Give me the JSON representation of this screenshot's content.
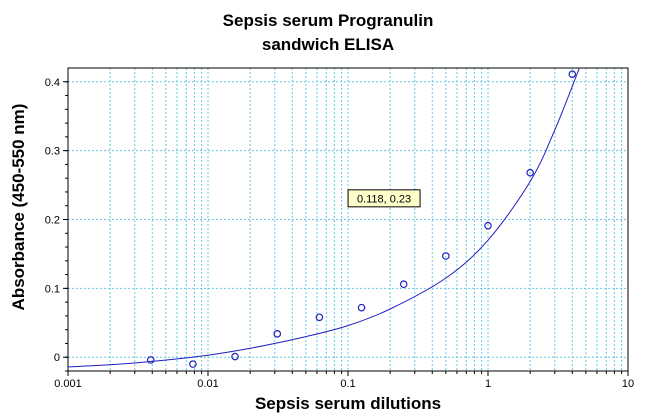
{
  "chart_data": {
    "type": "scatter",
    "title_lines": [
      "Sepsis serum Progranulin",
      "sandwich ELISA"
    ],
    "xlabel": "Sepsis serum dilutions",
    "ylabel": "Absorbance (450-550 nm)",
    "x_scale": "log",
    "xlim": [
      0.001,
      10
    ],
    "ylim": [
      -0.02,
      0.42
    ],
    "x_ticks": [
      0.001,
      0.01,
      0.1,
      1,
      10
    ],
    "x_tick_labels": [
      "0.001",
      "0.01",
      "0.1",
      "1",
      "10"
    ],
    "y_ticks": [
      0,
      0.1,
      0.2,
      0.3,
      0.4
    ],
    "y_tick_labels": [
      "0",
      "0.1",
      "0.2",
      "0.3",
      "0.4"
    ],
    "grid": true,
    "colors": {
      "points": "#1f1fbf",
      "curve": "#1f1fbf",
      "grid": "#66c8e6",
      "annotation_bg": "#ffffcc"
    },
    "points": [
      {
        "x": 0.0039,
        "y": -0.004
      },
      {
        "x": 0.0078,
        "y": -0.01
      },
      {
        "x": 0.0156,
        "y": 0.001
      },
      {
        "x": 0.03125,
        "y": 0.034
      },
      {
        "x": 0.0625,
        "y": 0.058
      },
      {
        "x": 0.125,
        "y": 0.072
      },
      {
        "x": 0.25,
        "y": 0.106
      },
      {
        "x": 0.5,
        "y": 0.147
      },
      {
        "x": 1,
        "y": 0.191
      },
      {
        "x": 2,
        "y": 0.268
      },
      {
        "x": 4,
        "y": 0.411
      }
    ],
    "fit_curve": [
      {
        "x": 0.001,
        "y": -0.014
      },
      {
        "x": 0.002,
        "y": -0.011
      },
      {
        "x": 0.004,
        "y": -0.006
      },
      {
        "x": 0.01,
        "y": 0.003
      },
      {
        "x": 0.02,
        "y": 0.013
      },
      {
        "x": 0.05,
        "y": 0.03
      },
      {
        "x": 0.1,
        "y": 0.046
      },
      {
        "x": 0.2,
        "y": 0.07
      },
      {
        "x": 0.5,
        "y": 0.115
      },
      {
        "x": 1,
        "y": 0.17
      },
      {
        "x": 2,
        "y": 0.255
      },
      {
        "x": 3,
        "y": 0.33
      },
      {
        "x": 4.5,
        "y": 0.42
      }
    ],
    "annotation": {
      "text": "0.118, 0.23",
      "x": 0.118,
      "y": 0.23
    }
  }
}
